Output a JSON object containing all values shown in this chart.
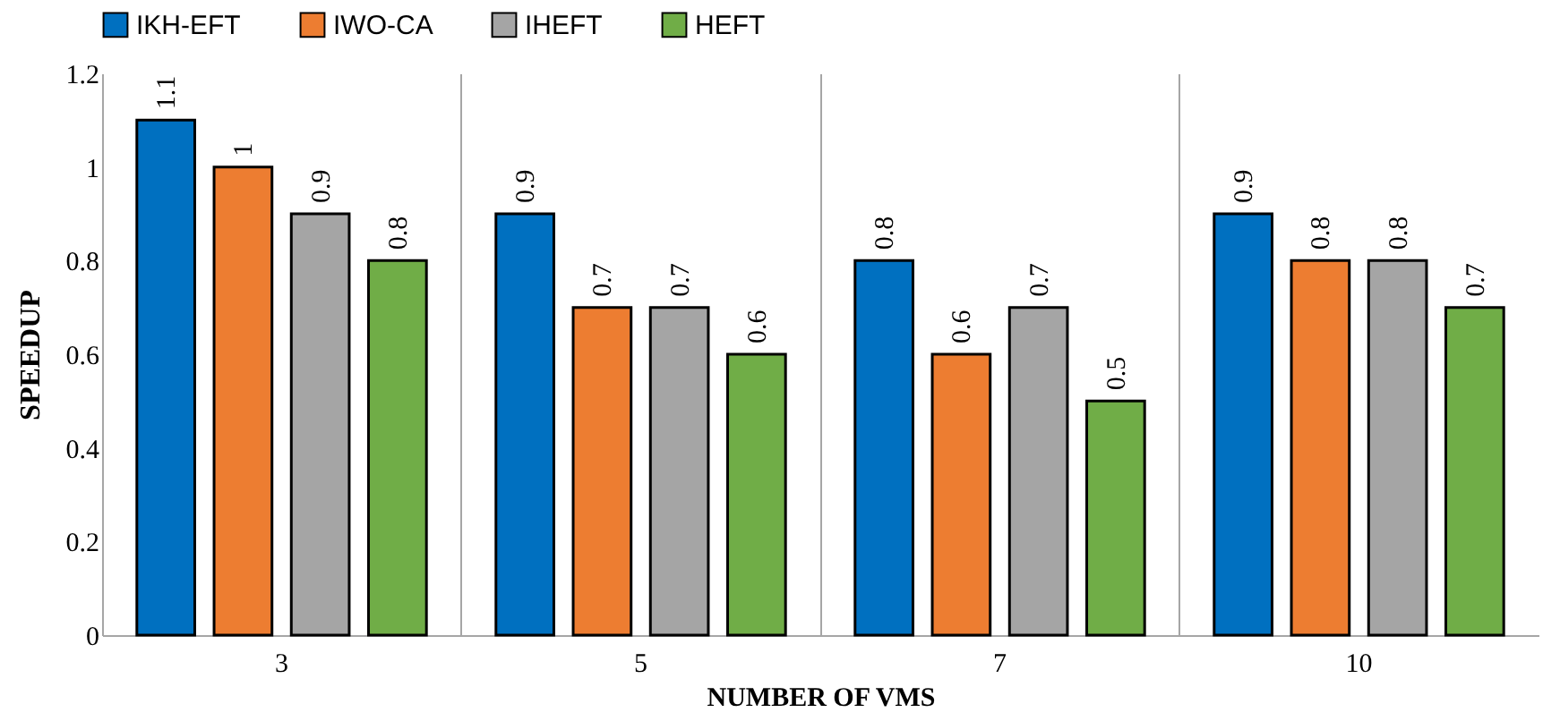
{
  "chart_data": {
    "type": "bar",
    "xlabel": "NUMBER OF VMS",
    "ylabel": "SPEEDUP",
    "categories": [
      "3",
      "5",
      "7",
      "10"
    ],
    "series": [
      {
        "name": "IKH-EFT",
        "color": "#0070c0",
        "values": [
          1.1,
          0.9,
          0.8,
          0.9
        ]
      },
      {
        "name": "IWO-CA",
        "color": "#ed7d31",
        "values": [
          1,
          0.7,
          0.6,
          0.8
        ]
      },
      {
        "name": "IHEFT",
        "color": "#a5a5a5",
        "values": [
          0.9,
          0.7,
          0.7,
          0.8
        ]
      },
      {
        "name": "HEFT",
        "color": "#70ad47",
        "values": [
          0.8,
          0.6,
          0.5,
          0.7
        ]
      }
    ],
    "ylim": [
      0,
      1.2
    ],
    "yticks": [
      0,
      0.2,
      0.4,
      0.6,
      0.8,
      1,
      1.2
    ],
    "grid": "x",
    "legend": "top",
    "data_labels": true
  }
}
